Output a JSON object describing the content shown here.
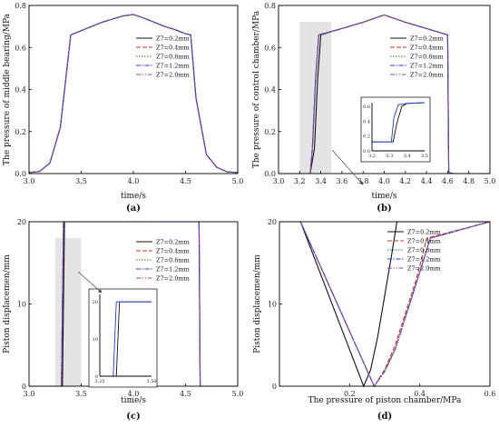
{
  "legend_entries": [
    "Z7=0.2mm",
    "Z7=0.4mm",
    "Z7=0.8mm",
    "Z7=1.2mm",
    "Z7=2.0mm"
  ],
  "series_colors": [
    "#111111",
    "#c0392b",
    "#2e7d32",
    "#1f3fbf",
    "#8e44ad"
  ],
  "chart_data": [
    {
      "type": "line",
      "panel_label": "(a)",
      "xlabel": "time/s",
      "ylabel": "The pressure of middle bearing/MPa",
      "xlim": [
        3.0,
        5.0
      ],
      "ylim": [
        0.0,
        0.8
      ],
      "xticks": [
        3.0,
        3.5,
        4.0,
        4.5,
        5.0
      ],
      "yticks": [
        0.0,
        0.2,
        0.4,
        0.6,
        0.8
      ],
      "xtick_labels": [
        "3.0",
        "3.5",
        "4.0",
        "4.5",
        "5.0"
      ],
      "ytick_labels": [
        "0.0",
        "0.2",
        "0.4",
        "0.6",
        "0.8"
      ],
      "legend_position": "top-right",
      "series": [
        {
          "name": "Z7=0.2mm",
          "x": [
            3.0,
            3.1,
            3.2,
            3.3,
            3.4,
            3.45,
            3.5,
            3.6,
            3.7,
            3.8,
            3.9,
            4.0,
            4.1,
            4.2,
            4.3,
            4.4,
            4.5,
            4.55,
            4.6,
            4.7,
            4.8,
            4.9,
            5.0
          ],
          "y": [
            0.005,
            0.01,
            0.05,
            0.22,
            0.66,
            0.67,
            0.68,
            0.7,
            0.72,
            0.735,
            0.75,
            0.757,
            0.74,
            0.72,
            0.7,
            0.685,
            0.665,
            0.66,
            0.36,
            0.09,
            0.03,
            0.008,
            0.005
          ]
        },
        {
          "name": "Z7=0.4mm",
          "x": [
            3.0,
            3.1,
            3.2,
            3.3,
            3.4,
            3.45,
            3.5,
            3.6,
            3.7,
            3.8,
            3.9,
            4.0,
            4.1,
            4.2,
            4.3,
            4.4,
            4.5,
            4.55,
            4.6,
            4.7,
            4.8,
            4.9,
            5.0
          ],
          "y": [
            0.005,
            0.01,
            0.05,
            0.22,
            0.66,
            0.67,
            0.68,
            0.7,
            0.72,
            0.735,
            0.75,
            0.757,
            0.74,
            0.72,
            0.7,
            0.685,
            0.665,
            0.66,
            0.36,
            0.09,
            0.03,
            0.008,
            0.005
          ]
        },
        {
          "name": "Z7=0.8mm",
          "x": [
            3.0,
            3.1,
            3.2,
            3.3,
            3.4,
            3.45,
            3.5,
            3.6,
            3.7,
            3.8,
            3.9,
            4.0,
            4.1,
            4.2,
            4.3,
            4.4,
            4.5,
            4.55,
            4.6,
            4.7,
            4.8,
            4.9,
            5.0
          ],
          "y": [
            0.005,
            0.01,
            0.05,
            0.22,
            0.66,
            0.67,
            0.68,
            0.7,
            0.72,
            0.735,
            0.75,
            0.757,
            0.74,
            0.72,
            0.7,
            0.685,
            0.665,
            0.66,
            0.36,
            0.09,
            0.03,
            0.008,
            0.005
          ]
        },
        {
          "name": "Z7=1.2mm",
          "x": [
            3.0,
            3.1,
            3.2,
            3.3,
            3.4,
            3.45,
            3.5,
            3.6,
            3.7,
            3.8,
            3.9,
            4.0,
            4.1,
            4.2,
            4.3,
            4.4,
            4.5,
            4.55,
            4.6,
            4.7,
            4.8,
            4.9,
            5.0
          ],
          "y": [
            0.005,
            0.01,
            0.05,
            0.22,
            0.66,
            0.67,
            0.68,
            0.7,
            0.72,
            0.735,
            0.75,
            0.757,
            0.74,
            0.72,
            0.7,
            0.685,
            0.665,
            0.66,
            0.36,
            0.09,
            0.03,
            0.008,
            0.005
          ]
        },
        {
          "name": "Z7=2.0mm",
          "x": [
            3.0,
            3.1,
            3.2,
            3.3,
            3.4,
            3.45,
            3.5,
            3.6,
            3.7,
            3.8,
            3.9,
            4.0,
            4.1,
            4.2,
            4.3,
            4.4,
            4.5,
            4.55,
            4.6,
            4.7,
            4.8,
            4.9,
            5.0
          ],
          "y": [
            0.005,
            0.01,
            0.05,
            0.22,
            0.66,
            0.67,
            0.68,
            0.7,
            0.72,
            0.735,
            0.75,
            0.757,
            0.74,
            0.72,
            0.7,
            0.685,
            0.665,
            0.66,
            0.36,
            0.09,
            0.03,
            0.008,
            0.005
          ]
        }
      ]
    },
    {
      "type": "line",
      "panel_label": "(b)",
      "xlabel": "time/s",
      "ylabel": "The pressure of control chamber/MPa",
      "xlim": [
        3.0,
        5.0
      ],
      "ylim": [
        0.0,
        0.8
      ],
      "xticks": [
        3.0,
        3.2,
        3.4,
        3.6,
        3.8,
        4.0,
        4.2,
        4.4,
        4.6,
        4.8,
        5.0
      ],
      "yticks": [
        0.0,
        0.2,
        0.4,
        0.6,
        0.8
      ],
      "xtick_labels": [
        "3.0",
        "3.2",
        "3.4",
        "3.6",
        "3.8",
        "4.0",
        "4.2",
        "4.4",
        "4.6",
        "4.8",
        "5.0"
      ],
      "ytick_labels": [
        "0.0",
        "0.2",
        "0.4",
        "0.6",
        "0.8"
      ],
      "highlight_x": [
        3.2,
        3.5
      ],
      "legend_position": "top-right",
      "series": [
        {
          "name": "Z7=0.2mm",
          "x": [
            3.0,
            3.2,
            3.3,
            3.34,
            3.37,
            3.4,
            3.6,
            3.8,
            4.0,
            4.2,
            4.4,
            4.6,
            4.61,
            4.65,
            4.7,
            5.0
          ],
          "y": [
            0.0,
            0.0,
            0.0,
            0.12,
            0.45,
            0.66,
            0.69,
            0.72,
            0.755,
            0.72,
            0.69,
            0.66,
            0.005,
            0.0,
            0.0,
            0.0
          ]
        },
        {
          "name": "Z7=0.4mm",
          "x": [
            3.0,
            3.2,
            3.3,
            3.32,
            3.35,
            3.38,
            3.6,
            3.8,
            4.0,
            4.2,
            4.4,
            4.6,
            4.61,
            4.65,
            4.7,
            5.0
          ],
          "y": [
            0.0,
            0.0,
            0.0,
            0.12,
            0.45,
            0.66,
            0.69,
            0.72,
            0.755,
            0.72,
            0.69,
            0.66,
            0.005,
            0.0,
            0.0,
            0.0
          ]
        },
        {
          "name": "Z7=0.8mm",
          "x": [
            3.0,
            3.2,
            3.3,
            3.32,
            3.35,
            3.38,
            3.6,
            3.8,
            4.0,
            4.2,
            4.4,
            4.6,
            4.61,
            4.65,
            4.7,
            5.0
          ],
          "y": [
            0.0,
            0.0,
            0.0,
            0.12,
            0.45,
            0.66,
            0.69,
            0.72,
            0.755,
            0.72,
            0.69,
            0.66,
            0.005,
            0.0,
            0.0,
            0.0
          ]
        },
        {
          "name": "Z7=1.2mm",
          "x": [
            3.0,
            3.2,
            3.3,
            3.32,
            3.35,
            3.38,
            3.6,
            3.8,
            4.0,
            4.2,
            4.4,
            4.6,
            4.61,
            4.65,
            4.7,
            5.0
          ],
          "y": [
            0.0,
            0.0,
            0.0,
            0.12,
            0.45,
            0.66,
            0.69,
            0.72,
            0.755,
            0.72,
            0.69,
            0.66,
            0.005,
            0.0,
            0.0,
            0.0
          ]
        },
        {
          "name": "Z7=2.0mm",
          "x": [
            3.0,
            3.2,
            3.3,
            3.32,
            3.35,
            3.38,
            3.6,
            3.8,
            4.0,
            4.2,
            4.4,
            4.6,
            4.61,
            4.65,
            4.7,
            5.0
          ],
          "y": [
            0.0,
            0.0,
            0.0,
            0.12,
            0.45,
            0.66,
            0.69,
            0.72,
            0.755,
            0.72,
            0.69,
            0.66,
            0.005,
            0.0,
            0.0,
            0.0
          ]
        }
      ],
      "inset": {
        "xlim": [
          3.2,
          3.5
        ],
        "ylim": [
          0.0,
          0.65
        ],
        "xticks": [
          3.2,
          3.3,
          3.4,
          3.5
        ],
        "yticks": [
          0.0,
          0.2,
          0.4,
          0.6
        ],
        "xtick_labels": [
          "3.2",
          "3.3",
          "3.4",
          "3.5"
        ],
        "ytick_labels": [
          "0.0",
          "0.2",
          "0.4",
          "0.6"
        ],
        "series": [
          {
            "name": "Z7=0.2mm",
            "x": [
              3.2,
              3.3,
              3.32,
              3.345,
              3.37,
              3.4,
              3.5
            ],
            "y": [
              0.12,
              0.12,
              0.12,
              0.4,
              0.6,
              0.64,
              0.65
            ]
          },
          {
            "name": "Z7=2.0mm",
            "x": [
              3.2,
              3.3,
              3.31,
              3.325,
              3.35,
              3.4,
              3.5
            ],
            "y": [
              0.12,
              0.12,
              0.12,
              0.45,
              0.62,
              0.64,
              0.65
            ]
          }
        ]
      }
    },
    {
      "type": "line",
      "panel_label": "(c)",
      "xlabel": "time/s",
      "ylabel": "Piston displacemen/mm",
      "xlim": [
        3.0,
        5.0
      ],
      "ylim": [
        0,
        20
      ],
      "xticks": [
        3.0,
        3.5,
        4.0,
        4.5,
        5.0
      ],
      "yticks": [
        0,
        10,
        20
      ],
      "xtick_labels": [
        "3.0",
        "3.5",
        "4.0",
        "4.5",
        "5.0"
      ],
      "ytick_labels": [
        "0",
        "10",
        "20"
      ],
      "highlight_x": [
        3.25,
        3.5
      ],
      "legend_position": "top-right",
      "series": [
        {
          "name": "Z7=0.2mm",
          "x": [
            3.0,
            3.32,
            3.34,
            3.35,
            4.63,
            4.64,
            5.0
          ],
          "y": [
            0,
            0,
            20,
            20,
            20,
            0,
            0
          ]
        },
        {
          "name": "Z7=0.4mm",
          "x": [
            3.0,
            3.31,
            3.33,
            3.35,
            4.63,
            4.64,
            5.0
          ],
          "y": [
            0,
            0,
            20,
            20,
            20,
            0,
            0
          ]
        },
        {
          "name": "Z7=0.8mm",
          "x": [
            3.0,
            3.31,
            3.33,
            3.35,
            4.63,
            4.64,
            5.0
          ],
          "y": [
            0,
            0,
            20,
            20,
            20,
            0,
            0
          ]
        },
        {
          "name": "Z7=1.2mm",
          "x": [
            3.0,
            3.31,
            3.33,
            3.35,
            4.63,
            4.64,
            5.0
          ],
          "y": [
            0,
            0,
            20,
            20,
            20,
            0,
            0
          ]
        },
        {
          "name": "Z7=2.0mm",
          "x": [
            3.0,
            3.31,
            3.33,
            3.35,
            4.63,
            4.64,
            5.0
          ],
          "y": [
            0,
            0,
            20,
            20,
            20,
            0,
            0
          ]
        }
      ],
      "inset": {
        "xlim": [
          3.25,
          3.5
        ],
        "ylim": [
          0,
          22
        ],
        "xticks": [
          3.25,
          3.5
        ],
        "yticks": [
          0,
          10,
          20
        ],
        "xtick_labels": [
          "3.25",
          "3.50"
        ],
        "ytick_labels": [
          "0",
          "10",
          "20"
        ],
        "series": [
          {
            "name": "Z7=0.2mm",
            "x": [
              3.25,
              3.33,
              3.345,
              3.5
            ],
            "y": [
              0,
              0,
              20,
              20
            ]
          },
          {
            "name": "Z7=2.0mm",
            "x": [
              3.25,
              3.315,
              3.33,
              3.5
            ],
            "y": [
              0,
              0,
              20,
              20
            ]
          }
        ]
      }
    },
    {
      "type": "line",
      "panel_label": "(d)",
      "xlabel": "The pressure of piston chamber/MPa",
      "ylabel": "Piston displacemen/mm",
      "xlim": [
        0.0,
        0.6
      ],
      "ylim": [
        0,
        20
      ],
      "xticks": [
        0.2,
        0.4,
        0.6
      ],
      "yticks": [
        0,
        10,
        20
      ],
      "xtick_labels": [
        "0.2",
        "0.4",
        "0.6"
      ],
      "ytick_labels": [
        "0",
        "10",
        "20"
      ],
      "legend_position": "bottom-right",
      "series": [
        {
          "name": "Z7=0.2mm",
          "x": [
            0.0,
            0.06,
            0.24,
            0.26,
            0.28,
            0.3,
            0.32,
            0.335,
            0.6
          ],
          "y": [
            20,
            20,
            0,
            2,
            6,
            11,
            16,
            20,
            20
          ]
        },
        {
          "name": "Z7=0.4mm",
          "x": [
            0.0,
            0.06,
            0.27,
            0.3,
            0.33,
            0.36,
            0.39,
            0.42,
            0.6
          ],
          "y": [
            20,
            20,
            0,
            2,
            5,
            9,
            13,
            18,
            20
          ]
        },
        {
          "name": "Z7=0.8mm",
          "x": [
            0.0,
            0.06,
            0.27,
            0.3,
            0.33,
            0.36,
            0.39,
            0.43,
            0.6
          ],
          "y": [
            20,
            20,
            0,
            1.8,
            4.5,
            8.5,
            12.5,
            18,
            20
          ]
        },
        {
          "name": "Z7=1.2mm",
          "x": [
            0.0,
            0.06,
            0.27,
            0.3,
            0.33,
            0.36,
            0.39,
            0.43,
            0.6
          ],
          "y": [
            20,
            20,
            0,
            1.8,
            4.5,
            8.5,
            12.5,
            18,
            20
          ]
        },
        {
          "name": "Z7=2.0mm",
          "x": [
            0.0,
            0.06,
            0.27,
            0.3,
            0.33,
            0.36,
            0.39,
            0.43,
            0.6
          ],
          "y": [
            20,
            20,
            0,
            1.8,
            4.5,
            8.5,
            12.5,
            18,
            20
          ]
        }
      ]
    }
  ]
}
